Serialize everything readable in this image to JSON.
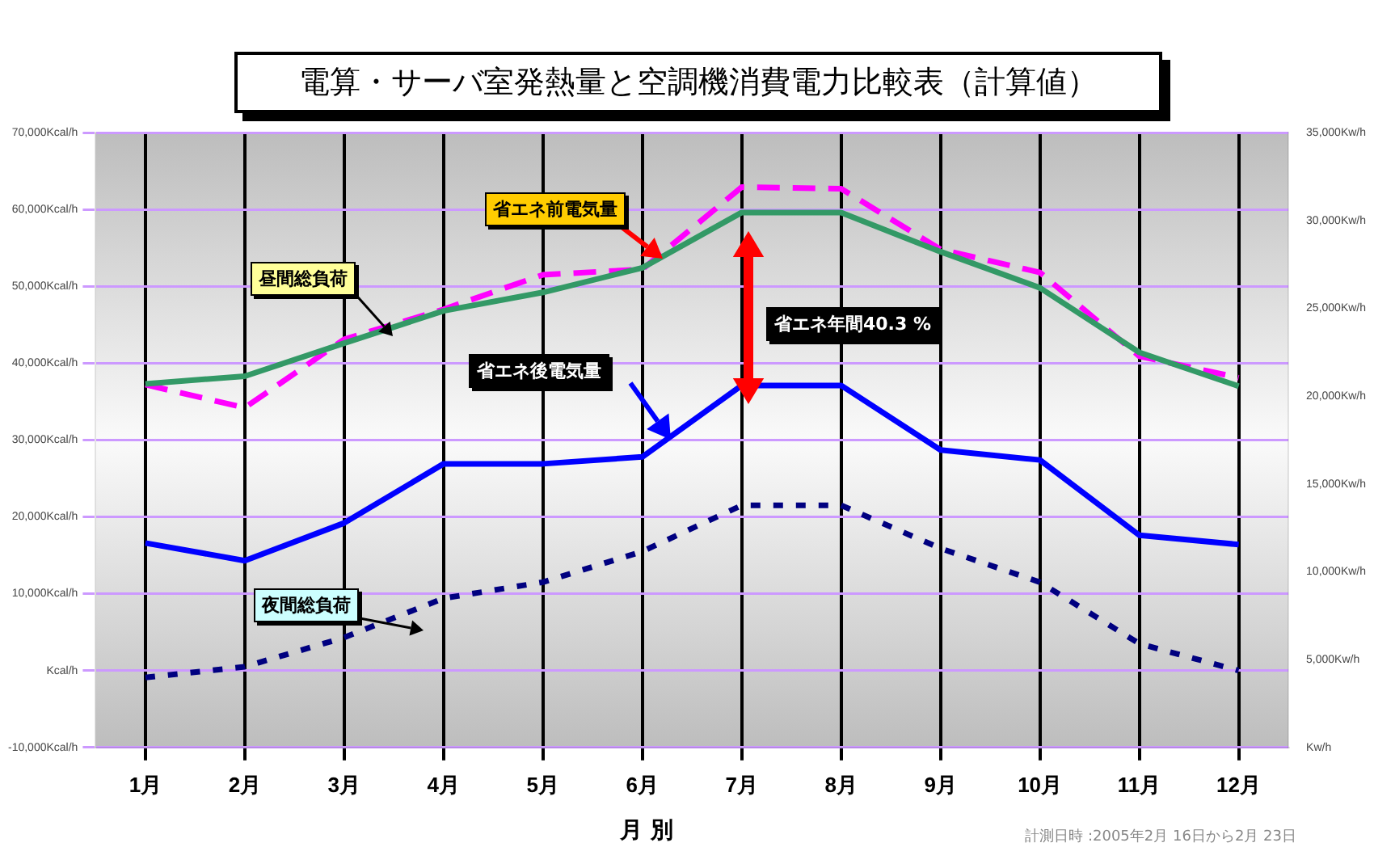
{
  "chart_data": {
    "type": "line",
    "title": "電算・サーバ室発熱量と空調機消費電力比較表（計算値）",
    "xlabel": "月 別",
    "categories": [
      "1月",
      "2月",
      "3月",
      "4月",
      "5月",
      "6月",
      "7月",
      "8月",
      "9月",
      "10月",
      "11月",
      "12月"
    ],
    "series": [
      {
        "color": "#339966",
        "line_style": "solid",
        "values": [
          37300,
          38300,
          42600,
          46800,
          49200,
          52400,
          59600,
          59600,
          54500,
          49800,
          41400,
          37000
        ]
      },
      {
        "color": "#ff00ff",
        "line_style": "dashed",
        "values": [
          37200,
          34200,
          43100,
          47000,
          51500,
          52200,
          62900,
          62700,
          54800,
          51800,
          40900,
          38100
        ]
      },
      {
        "color": "#0000ff",
        "line_style": "solid",
        "values": [
          16600,
          14300,
          19200,
          26900,
          26900,
          27800,
          37100,
          37100,
          28700,
          27400,
          17600,
          16400
        ]
      },
      {
        "color": "#000080",
        "line_style": "dotted",
        "values": [
          -900,
          500,
          4300,
          9400,
          11500,
          15500,
          21500,
          21500,
          15900,
          11500,
          3500,
          0
        ]
      }
    ],
    "ylim": [
      -10000,
      70000
    ],
    "yticks": [
      {
        "value": -10000,
        "label": "-10,000Kcal/h"
      },
      {
        "value": 0,
        "label": "Kcal/h"
      },
      {
        "value": 10000,
        "label": "10,000Kcal/h"
      },
      {
        "value": 20000,
        "label": "20,000Kcal/h"
      },
      {
        "value": 30000,
        "label": "30,000Kcal/h"
      },
      {
        "value": 40000,
        "label": "40,000Kcal/h"
      },
      {
        "value": 50000,
        "label": "50,000Kcal/h"
      },
      {
        "value": 60000,
        "label": "60,000Kcal/h"
      },
      {
        "value": 70000,
        "label": "70,000Kcal/h"
      }
    ],
    "y2lim": [
      0,
      35000
    ],
    "y2ticks": [
      {
        "value": 0,
        "label": "Kw/h"
      },
      {
        "value": 5000,
        "label": "5,000Kw/h"
      },
      {
        "value": 10000,
        "label": "10,000Kw/h"
      },
      {
        "value": 15000,
        "label": "15,000Kw/h"
      },
      {
        "value": 20000,
        "label": "20,000Kw/h"
      },
      {
        "value": 25000,
        "label": "25,000Kw/h"
      },
      {
        "value": 30000,
        "label": "30,000Kw/h"
      },
      {
        "value": 35000,
        "label": "35,000Kw/h"
      }
    ],
    "grid": true,
    "legend": false,
    "marker": "none",
    "annotations": [
      "省エネ前電気量",
      "昼間総負荷",
      "省エネ後電気量",
      "夜間総負荷",
      "省エネ年間40.3 %",
      "計測日時 :2005年2月 16日から2月 23日"
    ]
  }
}
